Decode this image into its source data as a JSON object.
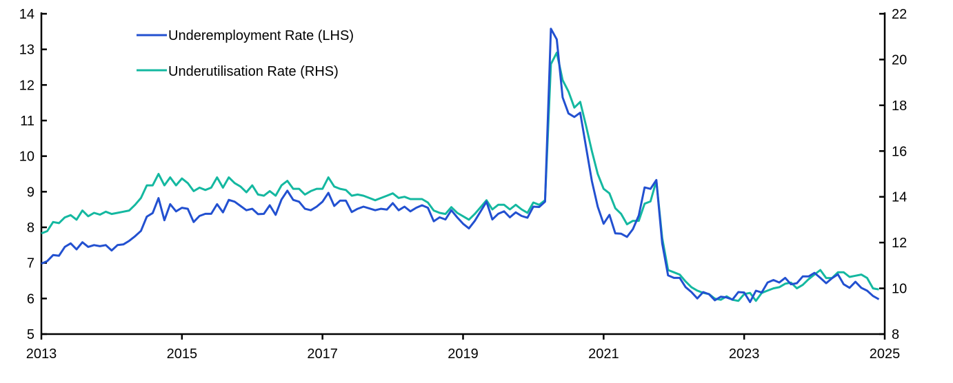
{
  "chart_data": {
    "type": "line",
    "title": "",
    "xlabel": "",
    "ylabel_left": "",
    "ylabel_right": "",
    "x_start": "2013-01",
    "x_end": "2024-12",
    "frequency": "monthly",
    "xlim": [
      2013,
      2025
    ],
    "ylim_left": [
      5,
      14
    ],
    "ylim_right": [
      8,
      22
    ],
    "x_ticks": [
      "2013",
      "2015",
      "2017",
      "2019",
      "2021",
      "2023",
      "2025"
    ],
    "y_ticks_left": [
      "5",
      "6",
      "7",
      "8",
      "9",
      "10",
      "11",
      "12",
      "13",
      "14"
    ],
    "y_ticks_right": [
      "8",
      "10",
      "12",
      "14",
      "16",
      "18",
      "20",
      "22"
    ],
    "legend_position": "top-left",
    "grid": false,
    "series": [
      {
        "name": "Underemployment Rate (LHS)",
        "axis": "left",
        "color": "#2250d0",
        "values": [
          6.98,
          7.05,
          7.22,
          7.2,
          7.45,
          7.55,
          7.38,
          7.58,
          7.45,
          7.5,
          7.47,
          7.5,
          7.35,
          7.5,
          7.52,
          7.62,
          7.75,
          7.9,
          8.3,
          8.4,
          8.82,
          8.2,
          8.65,
          8.45,
          8.55,
          8.52,
          8.15,
          8.32,
          8.38,
          8.38,
          8.65,
          8.42,
          8.77,
          8.72,
          8.6,
          8.48,
          8.52,
          8.37,
          8.38,
          8.62,
          8.35,
          8.78,
          9.03,
          8.77,
          8.72,
          8.52,
          8.48,
          8.58,
          8.72,
          8.97,
          8.6,
          8.75,
          8.75,
          8.43,
          8.52,
          8.58,
          8.53,
          8.48,
          8.52,
          8.5,
          8.68,
          8.48,
          8.58,
          8.45,
          8.55,
          8.62,
          8.55,
          8.17,
          8.28,
          8.22,
          8.48,
          8.28,
          8.1,
          7.97,
          8.18,
          8.45,
          8.72,
          8.22,
          8.38,
          8.45,
          8.28,
          8.42,
          8.32,
          8.27,
          8.58,
          8.57,
          8.72,
          13.58,
          13.28,
          11.65,
          11.2,
          11.1,
          11.22,
          10.25,
          9.3,
          8.58,
          8.1,
          8.35,
          7.83,
          7.82,
          7.73,
          7.95,
          8.33,
          9.12,
          9.08,
          9.33,
          7.55,
          6.65,
          6.58,
          6.58,
          6.32,
          6.18,
          6.0,
          6.18,
          6.12,
          5.95,
          6.05,
          6.03,
          5.97,
          6.18,
          6.17,
          5.9,
          6.22,
          6.17,
          6.45,
          6.52,
          6.45,
          6.58,
          6.4,
          6.43,
          6.62,
          6.62,
          6.72,
          6.58,
          6.43,
          6.57,
          6.68,
          6.4,
          6.3,
          6.47,
          6.3,
          6.22,
          6.07,
          5.98
        ]
      },
      {
        "name": "Underutilisation Rate (RHS)",
        "axis": "right",
        "color": "#14b8a0",
        "values": [
          12.4,
          12.5,
          12.9,
          12.85,
          13.1,
          13.2,
          13.0,
          13.4,
          13.15,
          13.3,
          13.22,
          13.35,
          13.25,
          13.3,
          13.35,
          13.4,
          13.65,
          13.95,
          14.5,
          14.5,
          15.0,
          14.5,
          14.85,
          14.5,
          14.8,
          14.6,
          14.25,
          14.4,
          14.3,
          14.4,
          14.85,
          14.4,
          14.85,
          14.6,
          14.45,
          14.2,
          14.5,
          14.1,
          14.05,
          14.25,
          14.05,
          14.5,
          14.7,
          14.35,
          14.35,
          14.1,
          14.25,
          14.35,
          14.35,
          14.85,
          14.45,
          14.35,
          14.3,
          14.05,
          14.1,
          14.05,
          13.95,
          13.85,
          13.95,
          14.05,
          14.15,
          13.95,
          14.0,
          13.9,
          13.9,
          13.9,
          13.75,
          13.4,
          13.3,
          13.25,
          13.55,
          13.3,
          13.15,
          13.0,
          13.25,
          13.55,
          13.85,
          13.45,
          13.65,
          13.65,
          13.45,
          13.65,
          13.45,
          13.3,
          13.75,
          13.65,
          13.85,
          19.8,
          20.3,
          19.1,
          18.6,
          17.9,
          18.15,
          17.1,
          16.0,
          15.0,
          14.35,
          14.15,
          13.5,
          13.25,
          12.8,
          12.95,
          12.95,
          13.7,
          13.8,
          14.7,
          12.2,
          10.8,
          10.7,
          10.6,
          10.3,
          10.05,
          9.9,
          9.8,
          9.75,
          9.55,
          9.5,
          9.65,
          9.5,
          9.45,
          9.75,
          9.8,
          9.45,
          9.8,
          9.9,
          10.0,
          10.05,
          10.2,
          10.25,
          10.0,
          10.15,
          10.4,
          10.6,
          10.8,
          10.45,
          10.45,
          10.7,
          10.7,
          10.5,
          10.55,
          10.6,
          10.45,
          10.0,
          9.95
        ]
      }
    ]
  }
}
